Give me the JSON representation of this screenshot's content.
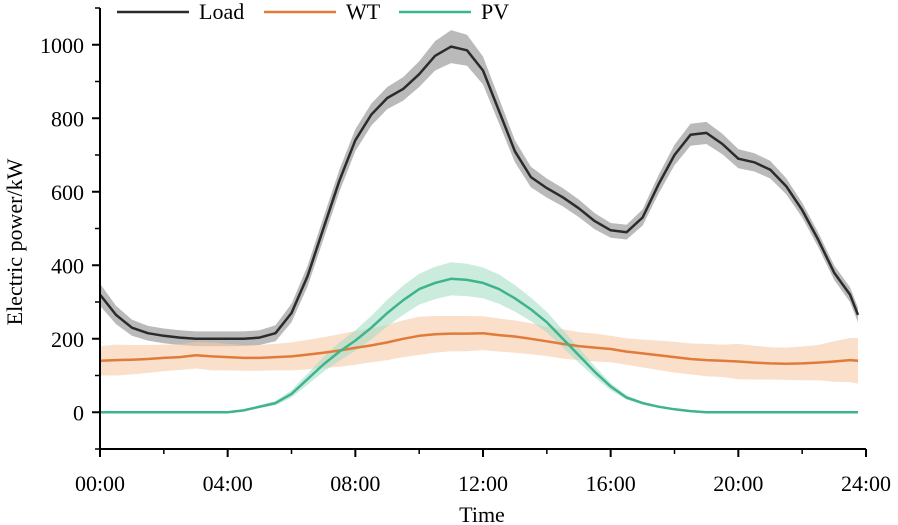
{
  "chart_data": {
    "type": "line",
    "title": "",
    "xlabel": "Time",
    "ylabel": "Electric power/kW",
    "xlim": [
      0,
      24
    ],
    "ylim": [
      -100,
      1100
    ],
    "x_ticks": [
      0,
      4,
      8,
      12,
      16,
      20,
      24
    ],
    "x_tick_labels": [
      "00:00",
      "04:00",
      "08:00",
      "12:00",
      "16:00",
      "20:00",
      "24:00"
    ],
    "y_ticks": [
      0,
      200,
      400,
      600,
      800,
      1000
    ],
    "y_tick_labels": [
      "0",
      "200",
      "400",
      "600",
      "800",
      "1000"
    ],
    "x": [
      0,
      0.5,
      1,
      1.5,
      2,
      2.5,
      3,
      3.5,
      4,
      4.5,
      5,
      5.5,
      6,
      6.5,
      7,
      7.5,
      8,
      8.5,
      9,
      9.5,
      10,
      10.5,
      11,
      11.5,
      12,
      12.5,
      13,
      13.5,
      14,
      14.5,
      15,
      15.5,
      16,
      16.5,
      17,
      17.5,
      18,
      18.5,
      19,
      19.5,
      20,
      20.5,
      21,
      21.5,
      22,
      22.5,
      23,
      23.5,
      23.75
    ],
    "legend": [
      "Load",
      "WT",
      "PV"
    ],
    "legend_position": "top-left",
    "series": [
      {
        "name": "Load",
        "color": "#2b2b2b",
        "band_color": "#8c8c8c",
        "values": [
          320,
          265,
          230,
          215,
          208,
          203,
          200,
          200,
          200,
          200,
          203,
          215,
          270,
          370,
          500,
          630,
          740,
          810,
          855,
          880,
          920,
          970,
          995,
          985,
          930,
          820,
          710,
          640,
          610,
          585,
          555,
          520,
          495,
          490,
          530,
          620,
          700,
          755,
          760,
          730,
          690,
          680,
          660,
          615,
          550,
          470,
          380,
          320,
          265
        ],
        "band": [
          30,
          25,
          22,
          20,
          20,
          20,
          20,
          20,
          20,
          20,
          20,
          22,
          25,
          28,
          30,
          30,
          30,
          30,
          30,
          32,
          35,
          40,
          45,
          42,
          38,
          34,
          30,
          28,
          26,
          25,
          24,
          22,
          20,
          20,
          22,
          25,
          28,
          30,
          30,
          28,
          26,
          25,
          24,
          22,
          20,
          20,
          20,
          20,
          20
        ]
      },
      {
        "name": "WT",
        "color": "#e07b39",
        "band_color": "#f6c9a8",
        "values": [
          140,
          142,
          143,
          145,
          148,
          150,
          155,
          152,
          150,
          148,
          148,
          150,
          152,
          157,
          162,
          168,
          175,
          182,
          190,
          200,
          208,
          212,
          214,
          214,
          215,
          210,
          206,
          200,
          193,
          186,
          180,
          176,
          172,
          165,
          160,
          155,
          150,
          145,
          142,
          140,
          138,
          135,
          133,
          132,
          133,
          135,
          138,
          142,
          140
        ],
        "band": [
          40,
          42,
          40,
          38,
          36,
          35,
          36,
          38,
          36,
          35,
          35,
          36,
          38,
          40,
          42,
          44,
          46,
          46,
          48,
          50,
          52,
          50,
          48,
          48,
          46,
          45,
          44,
          42,
          40,
          40,
          38,
          38,
          36,
          36,
          38,
          40,
          42,
          42,
          44,
          44,
          48,
          46,
          44,
          44,
          46,
          48,
          55,
          60,
          62
        ]
      },
      {
        "name": "PV",
        "color": "#3db48e",
        "band_color": "#a9ddc7",
        "values": [
          0,
          0,
          0,
          0,
          0,
          0,
          0,
          0,
          0,
          5,
          15,
          25,
          50,
          90,
          130,
          165,
          195,
          230,
          270,
          305,
          335,
          352,
          363,
          360,
          352,
          335,
          310,
          280,
          245,
          200,
          155,
          110,
          70,
          40,
          25,
          15,
          8,
          3,
          0,
          0,
          0,
          0,
          0,
          0,
          0,
          0,
          0,
          0,
          0
        ],
        "band": [
          0,
          0,
          0,
          0,
          0,
          0,
          0,
          0,
          0,
          2,
          4,
          6,
          10,
          15,
          20,
          25,
          28,
          32,
          36,
          40,
          42,
          44,
          45,
          44,
          42,
          40,
          36,
          32,
          28,
          24,
          20,
          15,
          10,
          6,
          4,
          2,
          1,
          0,
          0,
          0,
          0,
          0,
          0,
          0,
          0,
          0,
          0,
          0,
          0
        ]
      }
    ]
  }
}
